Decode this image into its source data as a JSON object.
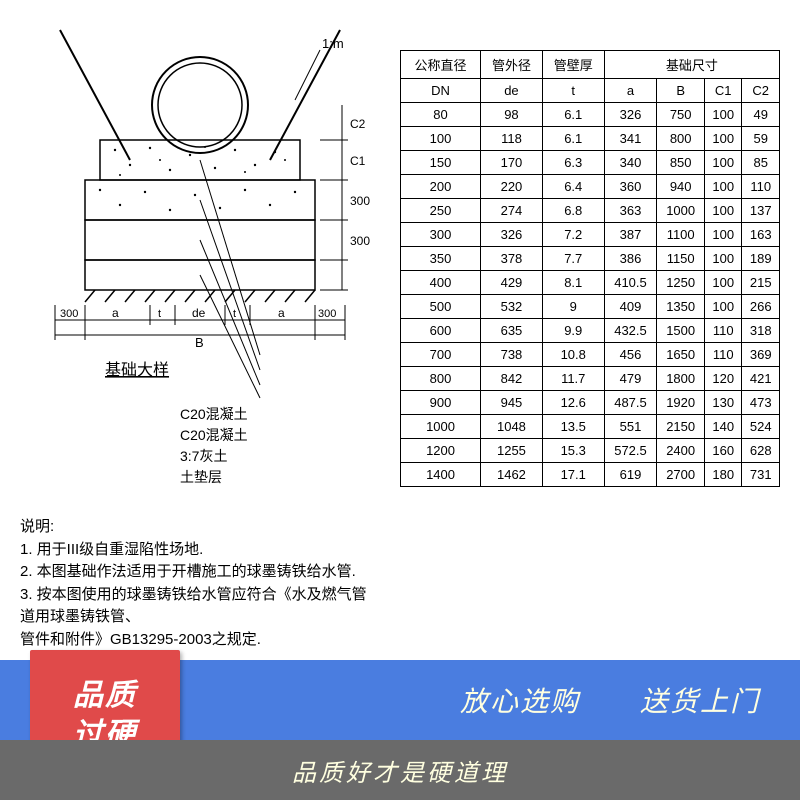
{
  "diagram": {
    "title": "基础大样",
    "scale_label": "1:m",
    "dim_labels": {
      "left_300": "300",
      "right_300": "300",
      "B": "B",
      "de": "de",
      "a_left": "a",
      "a_right": "a",
      "t1": "t",
      "t2": "t",
      "v_300a": "300",
      "v_300b": "300",
      "C1": "C1",
      "C2": "C2"
    },
    "legend": [
      "C20混凝土",
      "C20混凝土",
      "3:7灰土",
      "土垫层"
    ],
    "colors": {
      "line": "#000000",
      "bg": "#ffffff",
      "hatch_dot": "#000000"
    }
  },
  "notes": {
    "title": "说明:",
    "lines": [
      "1. 用于III级自重湿陷性场地.",
      "2. 本图基础作法适用于开槽施工的球墨铸铁给水管.",
      "3. 按本图使用的球墨铸铁给水管应符合《水及燃气管道用球墨铸铁管、",
      "管件和附件》GB13295-2003之规定."
    ]
  },
  "table": {
    "headers_row1": [
      "公称直径",
      "管外径",
      "管壁厚",
      "基础尺寸"
    ],
    "headers_row2": [
      "DN",
      "de",
      "t",
      "a",
      "B",
      "C1",
      "C2"
    ],
    "rows": [
      [
        "80",
        "98",
        "6.1",
        "326",
        "750",
        "100",
        "49"
      ],
      [
        "100",
        "118",
        "6.1",
        "341",
        "800",
        "100",
        "59"
      ],
      [
        "150",
        "170",
        "6.3",
        "340",
        "850",
        "100",
        "85"
      ],
      [
        "200",
        "220",
        "6.4",
        "360",
        "940",
        "100",
        "110"
      ],
      [
        "250",
        "274",
        "6.8",
        "363",
        "1000",
        "100",
        "137"
      ],
      [
        "300",
        "326",
        "7.2",
        "387",
        "1100",
        "100",
        "163"
      ],
      [
        "350",
        "378",
        "7.7",
        "386",
        "1150",
        "100",
        "189"
      ],
      [
        "400",
        "429",
        "8.1",
        "410.5",
        "1250",
        "100",
        "215"
      ],
      [
        "500",
        "532",
        "9",
        "409",
        "1350",
        "100",
        "266"
      ],
      [
        "600",
        "635",
        "9.9",
        "432.5",
        "1500",
        "110",
        "318"
      ],
      [
        "700",
        "738",
        "10.8",
        "456",
        "1650",
        "110",
        "369"
      ],
      [
        "800",
        "842",
        "11.7",
        "479",
        "1800",
        "120",
        "421"
      ],
      [
        "900",
        "945",
        "12.6",
        "487.5",
        "1920",
        "130",
        "473"
      ],
      [
        "1000",
        "1048",
        "13.5",
        "551",
        "2150",
        "140",
        "524"
      ],
      [
        "1200",
        "1255",
        "15.3",
        "572.5",
        "2400",
        "160",
        "628"
      ],
      [
        "1400",
        "1462",
        "17.1",
        "619",
        "2700",
        "180",
        "731"
      ]
    ],
    "cell_fontsize": 13,
    "border_color": "#000000"
  },
  "footer": {
    "badge_line1": "品质",
    "badge_line2": "过硬",
    "blue_left": "放心选购",
    "blue_right": "送货上门",
    "gray_text": "品质好才是硬道理",
    "colors": {
      "blue": "#4a7de0",
      "red": "#e04a4a",
      "gray": "#6a6a6a",
      "text_light": "#ffffe0",
      "text_white": "#ffffff"
    }
  }
}
